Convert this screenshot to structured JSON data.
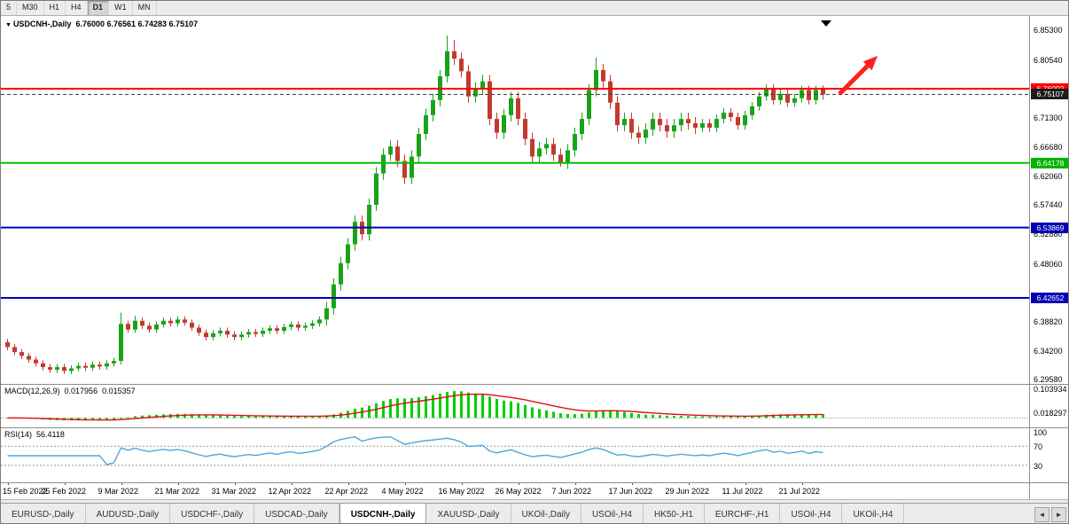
{
  "toolbar": {
    "timeframes": [
      {
        "label": "5",
        "active": false
      },
      {
        "label": "M30",
        "active": false
      },
      {
        "label": "H1",
        "active": false
      },
      {
        "label": "H4",
        "active": false
      },
      {
        "label": "D1",
        "active": true
      },
      {
        "label": "W1",
        "active": false
      },
      {
        "label": "MN",
        "active": false
      }
    ]
  },
  "chart": {
    "title": {
      "marker": "▼",
      "symbol": "USDCNH-,Daily",
      "ohlc": "6.76000 6.76561 6.74283 6.75107"
    }
  },
  "chart_data": {
    "type": "candlestick",
    "symbol": "USDCNH-",
    "timeframe": "Daily",
    "current_bar": {
      "open": "6.76000",
      "high": "6.76561",
      "low": "6.74283",
      "close": "6.75107"
    },
    "colors": {
      "up": "#18a418",
      "down": "#c23a2e",
      "macd_hist": "#00d000",
      "macd_signal": "#e01010",
      "rsi_line": "#4da6dd",
      "arrow": "#ff1f1f",
      "hline_red": "#ff0000",
      "hline_green": "#00c000",
      "hline_blue": "#0000b4"
    },
    "price_axis": {
      "ticks": [
        "6.85300",
        "6.80540",
        "6.71300",
        "6.66680",
        "6.62060",
        "6.57440",
        "6.52880",
        "6.48060",
        "6.38820",
        "6.34200",
        "6.29580"
      ],
      "badges": [
        {
          "label": "6.76002",
          "color": "#ff0000"
        },
        {
          "label": "6.75107",
          "color": "#1c1c1c"
        },
        {
          "label": "6.64178",
          "color": "#00b400"
        },
        {
          "label": "6.53869",
          "color": "#0000b4"
        },
        {
          "label": "6.42652",
          "color": "#0000b4"
        }
      ]
    },
    "hlines": [
      {
        "price": 6.76002,
        "color": "#ff0000",
        "width": 2,
        "dash": false
      },
      {
        "price": 6.75107,
        "color": "#444444",
        "width": 1,
        "dash": true
      },
      {
        "price": 6.64178,
        "color": "#00c000",
        "width": 2,
        "dash": false
      },
      {
        "price": 6.53869,
        "color": "#0000b4",
        "width": 2,
        "dash": false
      },
      {
        "price": 6.42652,
        "color": "#0000b4",
        "width": 2,
        "dash": false
      }
    ],
    "candles": {
      "open": [
        6.356,
        6.348,
        6.34,
        6.334,
        6.328,
        6.322,
        6.316,
        6.312,
        6.316,
        6.31,
        6.314,
        6.318,
        6.315,
        6.32,
        6.317,
        6.322,
        6.326,
        6.385,
        6.376,
        6.39,
        6.382,
        6.376,
        6.384,
        6.39,
        6.386,
        6.392,
        6.387,
        6.379,
        6.371,
        6.364,
        6.37,
        6.374,
        6.368,
        6.364,
        6.368,
        6.372,
        6.369,
        6.374,
        6.378,
        6.374,
        6.38,
        6.384,
        6.379,
        6.382,
        6.386,
        6.392,
        6.41,
        6.448,
        6.482,
        6.512,
        6.548,
        6.528,
        6.575,
        6.625,
        6.655,
        6.668,
        6.645,
        6.618,
        6.652,
        6.688,
        6.718,
        6.742,
        6.78,
        6.82,
        6.808,
        6.788,
        6.748,
        6.76,
        6.772,
        6.712,
        6.69,
        6.718,
        6.745,
        6.712,
        6.68,
        6.652,
        6.665,
        6.672,
        6.655,
        6.642,
        6.662,
        6.688,
        6.712,
        6.758,
        6.79,
        6.772,
        6.738,
        6.702,
        6.712,
        6.69,
        6.682,
        6.695,
        6.712,
        6.702,
        6.692,
        6.702,
        6.712,
        6.705,
        6.698,
        6.705,
        6.698,
        6.712,
        6.722,
        6.715,
        6.702,
        6.718,
        6.732,
        6.748,
        6.76,
        6.742,
        6.752,
        6.738,
        6.745,
        6.758,
        6.742,
        6.76
      ],
      "high": [
        6.361,
        6.353,
        6.345,
        6.339,
        6.333,
        6.327,
        6.321,
        6.321,
        6.321,
        6.319,
        6.323,
        6.323,
        6.325,
        6.325,
        6.327,
        6.331,
        6.403,
        6.39,
        6.398,
        6.395,
        6.387,
        6.389,
        6.395,
        6.395,
        6.397,
        6.397,
        6.392,
        6.384,
        6.376,
        6.375,
        6.379,
        6.379,
        6.373,
        6.373,
        6.377,
        6.377,
        6.379,
        6.383,
        6.383,
        6.385,
        6.389,
        6.389,
        6.387,
        6.391,
        6.397,
        6.42,
        6.458,
        6.492,
        6.522,
        6.558,
        6.558,
        6.585,
        6.635,
        6.665,
        6.678,
        6.678,
        6.655,
        6.662,
        6.698,
        6.728,
        6.752,
        6.79,
        6.845,
        6.838,
        6.818,
        6.798,
        6.77,
        6.782,
        6.782,
        6.722,
        6.728,
        6.755,
        6.755,
        6.722,
        6.69,
        6.675,
        6.682,
        6.682,
        6.665,
        6.672,
        6.698,
        6.722,
        6.768,
        6.81,
        6.8,
        6.782,
        6.748,
        6.722,
        6.722,
        6.7,
        6.705,
        6.722,
        6.722,
        6.712,
        6.712,
        6.722,
        6.722,
        6.715,
        6.712,
        6.712,
        6.719,
        6.729,
        6.729,
        6.722,
        6.725,
        6.739,
        6.755,
        6.767,
        6.767,
        6.759,
        6.759,
        6.752,
        6.765,
        6.765,
        6.765,
        6.76561
      ],
      "low": [
        6.343,
        6.335,
        6.329,
        6.323,
        6.317,
        6.311,
        6.307,
        6.307,
        6.305,
        6.305,
        6.309,
        6.31,
        6.31,
        6.312,
        6.312,
        6.317,
        6.32,
        6.371,
        6.371,
        6.377,
        6.371,
        6.371,
        6.379,
        6.381,
        6.381,
        6.382,
        6.374,
        6.366,
        6.359,
        6.359,
        6.365,
        6.363,
        6.359,
        6.359,
        6.363,
        6.364,
        6.364,
        6.369,
        6.369,
        6.369,
        6.375,
        6.374,
        6.374,
        6.377,
        6.381,
        6.382,
        6.4,
        6.438,
        6.472,
        6.502,
        6.518,
        6.518,
        6.565,
        6.615,
        6.645,
        6.635,
        6.608,
        6.608,
        6.642,
        6.678,
        6.708,
        6.732,
        6.77,
        6.798,
        6.778,
        6.738,
        6.738,
        6.75,
        6.702,
        6.68,
        6.68,
        6.708,
        6.702,
        6.67,
        6.642,
        6.642,
        6.655,
        6.645,
        6.636,
        6.632,
        6.652,
        6.678,
        6.702,
        6.748,
        6.762,
        6.728,
        6.692,
        6.692,
        6.68,
        6.672,
        6.672,
        6.685,
        6.692,
        6.682,
        6.682,
        6.692,
        6.695,
        6.688,
        6.691,
        6.691,
        6.691,
        6.705,
        6.708,
        6.695,
        6.695,
        6.711,
        6.725,
        6.741,
        6.735,
        6.735,
        6.731,
        6.731,
        6.738,
        6.735,
        6.735,
        6.74283
      ],
      "close": [
        6.348,
        6.34,
        6.334,
        6.328,
        6.322,
        6.316,
        6.312,
        6.316,
        6.31,
        6.314,
        6.318,
        6.315,
        6.32,
        6.317,
        6.322,
        6.326,
        6.385,
        6.376,
        6.39,
        6.382,
        6.376,
        6.384,
        6.39,
        6.386,
        6.392,
        6.387,
        6.379,
        6.371,
        6.364,
        6.37,
        6.374,
        6.368,
        6.364,
        6.368,
        6.372,
        6.369,
        6.374,
        6.378,
        6.374,
        6.38,
        6.384,
        6.379,
        6.382,
        6.386,
        6.392,
        6.41,
        6.448,
        6.482,
        6.512,
        6.548,
        6.528,
        6.575,
        6.625,
        6.655,
        6.668,
        6.645,
        6.618,
        6.652,
        6.688,
        6.718,
        6.742,
        6.78,
        6.82,
        6.808,
        6.788,
        6.748,
        6.76,
        6.772,
        6.712,
        6.69,
        6.718,
        6.745,
        6.712,
        6.68,
        6.652,
        6.665,
        6.672,
        6.655,
        6.642,
        6.662,
        6.688,
        6.712,
        6.758,
        6.79,
        6.772,
        6.738,
        6.702,
        6.712,
        6.69,
        6.682,
        6.695,
        6.712,
        6.702,
        6.692,
        6.702,
        6.712,
        6.705,
        6.698,
        6.705,
        6.698,
        6.712,
        6.722,
        6.715,
        6.702,
        6.718,
        6.732,
        6.748,
        6.76,
        6.742,
        6.752,
        6.738,
        6.745,
        6.758,
        6.742,
        6.758,
        6.75107
      ]
    },
    "x_labels": [
      {
        "label": "15 Feb 2022",
        "i": 0
      },
      {
        "label": "25 Feb 2022",
        "i": 8
      },
      {
        "label": "9 Mar 2022",
        "i": 16
      },
      {
        "label": "21 Mar 2022",
        "i": 24
      },
      {
        "label": "31 Mar 2022",
        "i": 32
      },
      {
        "label": "12 Apr 2022",
        "i": 40
      },
      {
        "label": "22 Apr 2022",
        "i": 48
      },
      {
        "label": "4 May 2022",
        "i": 56
      },
      {
        "label": "16 May 2022",
        "i": 64
      },
      {
        "label": "26 May 2022",
        "i": 72
      },
      {
        "label": "7 Jun 2022",
        "i": 80
      },
      {
        "label": "17 Jun 2022",
        "i": 88
      },
      {
        "label": "29 Jun 2022",
        "i": 96
      },
      {
        "label": "11 Jul 2022",
        "i": 104
      },
      {
        "label": "21 Jul 2022",
        "i": 112
      }
    ],
    "macd": {
      "name": "MACD(12,26,9)",
      "value_main": "0.017956",
      "value_signal": "0.015357",
      "fast": 12,
      "slow": 26,
      "signal": 9,
      "axis_labels": [
        {
          "label": "0.103934",
          "value": 0.103934
        },
        {
          "label": "0.018297",
          "value": 0.018297
        }
      ]
    },
    "rsi": {
      "name": "RSI(14)",
      "value": "56.4118",
      "period": 14,
      "levels": [
        {
          "label": "100",
          "value": 100,
          "dashed": false
        },
        {
          "label": "70",
          "value": 70,
          "dashed": true
        },
        {
          "label": "30",
          "value": 30,
          "dashed": true
        }
      ]
    }
  },
  "tabs": {
    "items": [
      {
        "label": "EURUSD-,Daily",
        "active": false
      },
      {
        "label": "AUDUSD-,Daily",
        "active": false
      },
      {
        "label": "USDCHF-,Daily",
        "active": false
      },
      {
        "label": "USDCAD-,Daily",
        "active": false
      },
      {
        "label": "USDCNH-,Daily",
        "active": true
      },
      {
        "label": "XAUUSD-,Daily",
        "active": false
      },
      {
        "label": "UKOil-,Daily",
        "active": false
      },
      {
        "label": "USOil-,H4",
        "active": false
      },
      {
        "label": "HK50-,H1",
        "active": false
      },
      {
        "label": "EURCHF-,H1",
        "active": false
      },
      {
        "label": "USOil-,H4",
        "active": false
      },
      {
        "label": "UKOil-,H4",
        "active": false
      }
    ],
    "scroll_left": "◄",
    "scroll_right": "►"
  }
}
